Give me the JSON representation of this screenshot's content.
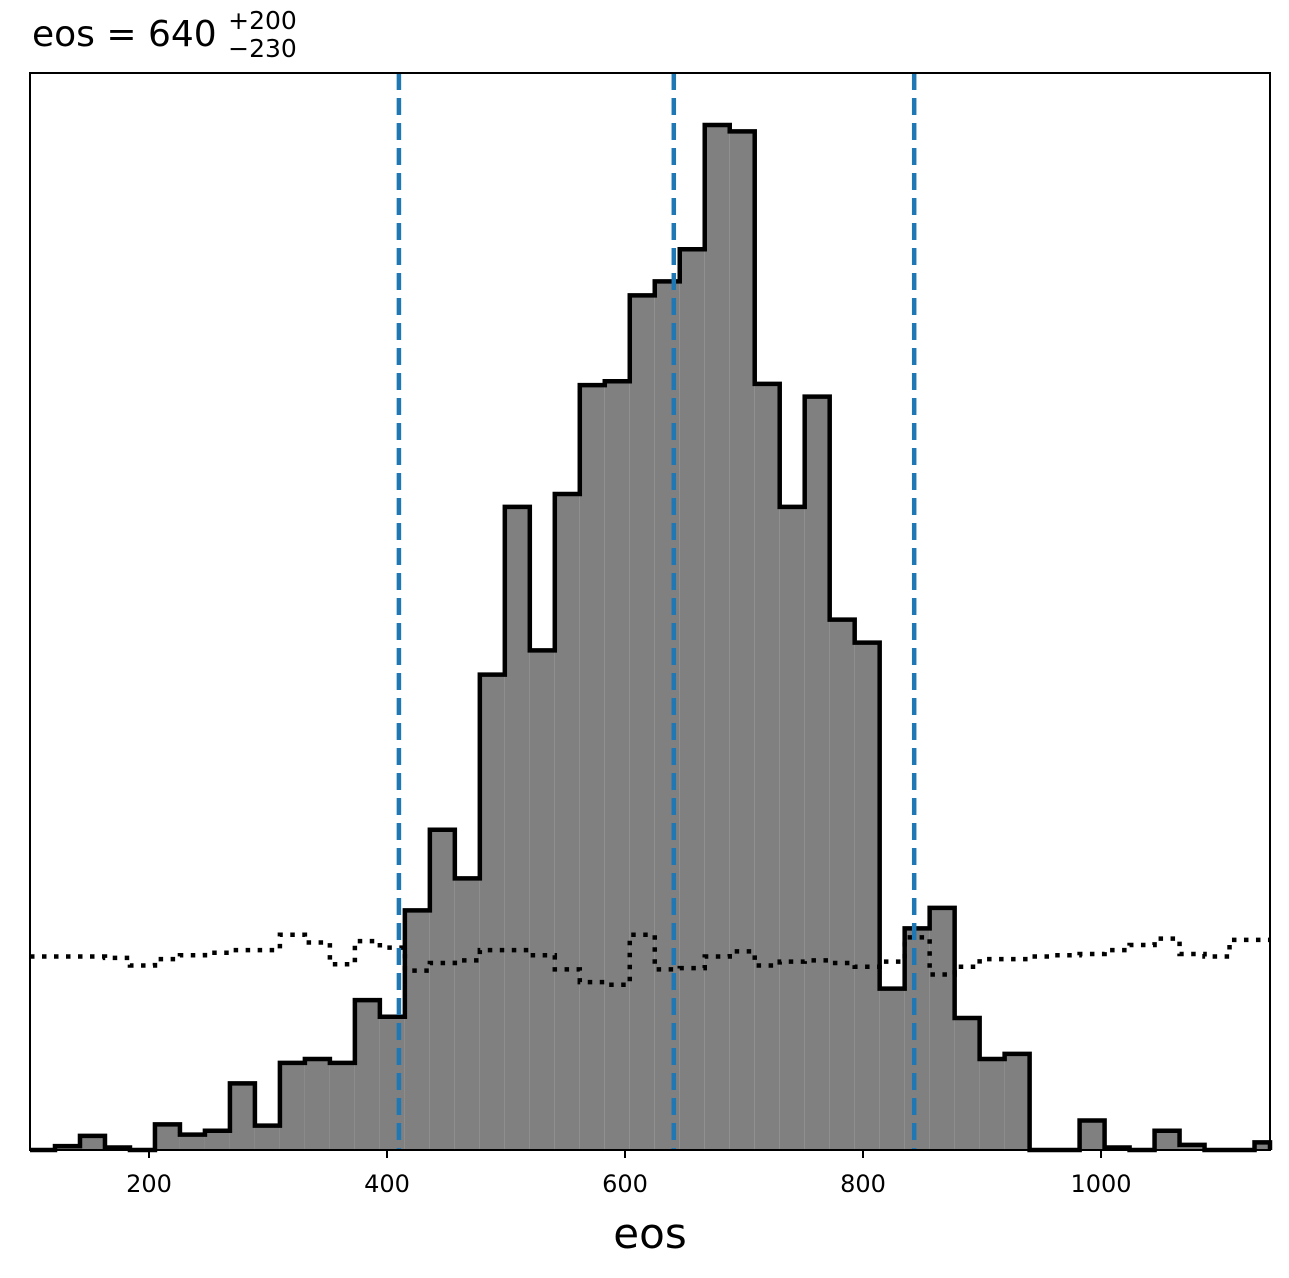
{
  "chart_data": {
    "type": "histogram",
    "title": {
      "prefix": "eos = 640",
      "upper": "+200",
      "lower": "−230"
    },
    "xlabel": "eos",
    "ylabel": "",
    "xlim": [
      100,
      1142
    ],
    "ylim": [
      0,
      80
    ],
    "x_ticks": [
      200,
      400,
      600,
      800,
      1000
    ],
    "x_tick_labels": [
      "200",
      "400",
      "600",
      "800",
      "1000"
    ],
    "y_ticks_visible": false,
    "grid": false,
    "bin_edges": [
      100,
      121,
      142,
      163,
      184,
      205,
      226,
      247,
      268,
      289,
      310,
      331,
      352,
      373,
      394,
      415,
      436,
      457,
      478,
      499,
      520,
      541,
      562,
      583,
      604,
      625,
      646,
      667,
      688,
      709,
      730,
      751,
      772,
      793,
      814,
      835,
      856,
      877,
      898,
      919,
      940,
      961,
      982,
      1003,
      1024,
      1045,
      1066,
      1087,
      1108,
      1129,
      1142
    ],
    "series": [
      {
        "kind": "posterior-histogram",
        "fill_color": "#808080",
        "edge_color": "#000000",
        "counts": [
          0,
          0.3,
          1.1,
          0.2,
          0,
          2.0,
          1.2,
          1.5,
          5.2,
          1.9,
          6.8,
          7.1,
          6.8,
          11.7,
          10.4,
          18.7,
          25.0,
          21.2,
          37.1,
          50.2,
          39.0,
          51.2,
          59.7,
          60.0,
          66.7,
          67.8,
          70.3,
          80.0,
          79.5,
          59.8,
          50.2,
          58.8,
          41.4,
          39.6,
          12.6,
          17.3,
          18.9,
          10.3,
          7.1,
          7.5,
          0,
          0,
          2.3,
          0.2,
          0,
          1.5,
          0.4,
          0,
          0,
          0.6
        ]
      },
      {
        "kind": "prior-histogram",
        "line_style": "dotted",
        "edge_color": "#000000",
        "counts": [
          15.1,
          15.1,
          15.1,
          15.0,
          14.4,
          14.9,
          15.2,
          15.4,
          15.6,
          15.6,
          16.8,
          16.2,
          14.5,
          16.3,
          15.8,
          14.0,
          14.6,
          14.8,
          15.6,
          15.6,
          15.2,
          14.1,
          13.1,
          12.9,
          16.8,
          14.1,
          14.2,
          15.1,
          15.5,
          14.4,
          14.7,
          14.8,
          14.6,
          14.3,
          14.7,
          16.6,
          13.7,
          14.3,
          14.9,
          14.9,
          15.1,
          15.2,
          15.3,
          15.6,
          16.0,
          16.5,
          15.3,
          15.1,
          16.4,
          16.4
        ]
      }
    ],
    "reference_lines": {
      "color": "#1f77b4",
      "style": "dashed",
      "values": [
        410,
        641,
        843
      ]
    }
  }
}
